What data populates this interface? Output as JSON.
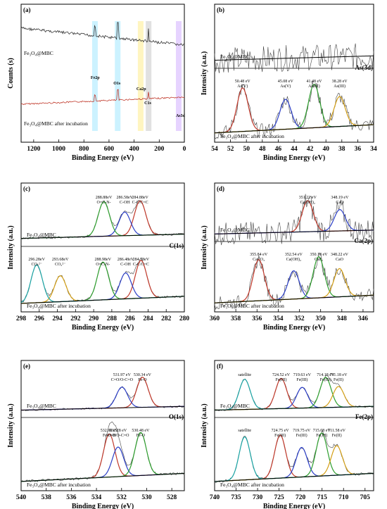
{
  "chart_data": [
    {
      "panel": "(a)",
      "type": "line",
      "xlabel": "Binding Energy (eV)",
      "ylabel": "Counts (s)",
      "xlim": [
        1300,
        0
      ],
      "xticks": [
        "1200",
        "1000",
        "800",
        "600",
        "400",
        "200",
        "0"
      ],
      "series_labels": [
        "Fe3O4@MBC",
        "Fe3O4@MBC after incubation"
      ],
      "annotations": [
        "Fe2p",
        "O1s",
        "Ca2p",
        "C1s",
        "As3d"
      ],
      "highlight_peaks": [
        712,
        531,
        348,
        285,
        45
      ]
    },
    {
      "panel": "(b)",
      "type": "line",
      "xlabel": "Binding Energy (eV)",
      "ylabel": "Intensity (a.u.)",
      "region": "As(3d)",
      "xlim": [
        54,
        34
      ],
      "xticks": [
        "54",
        "52",
        "50",
        "48",
        "46",
        "44",
        "42",
        "40",
        "38",
        "36",
        "34"
      ],
      "series_labels": [
        "Fe3O4@MBC",
        "Fe3O4@MBC after incubation"
      ],
      "peaks": [
        {
          "energy": 50.48,
          "label": "50.48 eV",
          "species": "As(V)"
        },
        {
          "energy": 45.08,
          "label": "45.08 eV",
          "species": "As(V)"
        },
        {
          "energy": 41.48,
          "label": "41.48 eV",
          "species": "As(III)"
        },
        {
          "energy": 38.28,
          "label": "38.28 eV",
          "species": "As(III)"
        }
      ]
    },
    {
      "panel": "(c)",
      "type": "line",
      "xlabel": "Binding Energy (eV)",
      "ylabel": "Intensity (a.u.)",
      "region": "C(1s)",
      "xlim": [
        298,
        280
      ],
      "xticks": [
        "298",
        "296",
        "294",
        "292",
        "290",
        "288",
        "286",
        "284",
        "282",
        "280"
      ],
      "series_labels": [
        "Fe3O4@MBC",
        "Fe3O4@MBC after incubation"
      ],
      "peaks_top": [
        {
          "energy": 284.88,
          "label": "284.88eV",
          "species": "C-C/C=C"
        },
        {
          "energy": 286.58,
          "label": "286.58eV",
          "species": "C-OH"
        },
        {
          "energy": 288.88,
          "label": "288.88eV",
          "species": "O=C-N-"
        }
      ],
      "peaks_bottom": [
        {
          "energy": 284.78,
          "label": "284.78eV",
          "species": "C-C/C=C"
        },
        {
          "energy": 286.48,
          "label": "286.48eV",
          "species": "C-OH"
        },
        {
          "energy": 288.98,
          "label": "288.98eV",
          "species": "O=C-N-"
        },
        {
          "energy": 293.68,
          "label": "293.68eV",
          "species": "CO32-"
        },
        {
          "energy": 296.28,
          "label": "296.28eV",
          "species": "CO32-"
        }
      ]
    },
    {
      "panel": "(d)",
      "type": "line",
      "xlabel": "Binding Energy (eV)",
      "ylabel": "Intensity (a.u.)",
      "region": "Ca(2p)",
      "xlim": [
        360,
        345
      ],
      "xticks": [
        "360",
        "358",
        "356",
        "354",
        "352",
        "350",
        "348",
        "346"
      ],
      "series_labels": [
        "Fe3O4@MBC",
        "Fe3O4@MBC after incubation"
      ],
      "peaks_top": [
        {
          "energy": 351.22,
          "label": "351.22 eV",
          "species": "Ca(OH)2"
        },
        {
          "energy": 348.19,
          "label": "348.19 eV",
          "species": "CaO"
        }
      ],
      "peaks_bottom": [
        {
          "energy": 355.84,
          "label": "355.84 eV",
          "species": "CaCO3"
        },
        {
          "energy": 352.54,
          "label": "352.54 eV",
          "species": "Ca(OH)2"
        },
        {
          "energy": 350.18,
          "label": "350.18 eV",
          "species": "CaF2"
        },
        {
          "energy": 348.22,
          "label": "348.22 eV",
          "species": "CaO"
        }
      ]
    },
    {
      "panel": "(e)",
      "type": "line",
      "xlabel": "Binding Energy (eV)",
      "ylabel": "Intensity (a.u.)",
      "region": "O(1s)",
      "xlim": [
        540,
        527
      ],
      "xticks": [
        "540",
        "538",
        "536",
        "534",
        "532",
        "530",
        "528"
      ],
      "series_labels": [
        "Fe3O4@MBC",
        "Fe3O4@MBC after incubation"
      ],
      "peaks_top": [
        {
          "energy": 530.34,
          "label": "530.34 eV",
          "species": "Fe-O"
        },
        {
          "energy": 531.97,
          "label": "531.97 eV",
          "species": "C=O/O-C=O"
        }
      ],
      "peaks_bottom": [
        {
          "energy": 532.98,
          "label": "532.98 eV",
          "species": "Fe-O-H"
        },
        {
          "energy": 532.28,
          "label": "532.28 eV",
          "species": "C=O/O-C=O"
        },
        {
          "energy": 530.48,
          "label": "530.48 eV",
          "species": "Fe-O"
        }
      ]
    },
    {
      "panel": "(f)",
      "type": "line",
      "xlabel": "Binding Energy (eV)",
      "ylabel": "Intensity (a.u.)",
      "region": "Fe(2p)",
      "xlim": [
        740,
        703
      ],
      "xticks": [
        "740",
        "735",
        "730",
        "725",
        "720",
        "715",
        "710",
        "705"
      ],
      "series_labels": [
        "Fe3O4@MBC",
        "Fe3O4@MBC after incubation"
      ],
      "peaks_top": [
        {
          "energy": 724.52,
          "label": "724.52 eV",
          "species": "Fe(III)"
        },
        {
          "energy": 719.63,
          "label": "719.63 eV",
          "species": "Fe(III)"
        },
        {
          "energy": 714.18,
          "label": "714.18 eV",
          "species": "Fe(III)"
        },
        {
          "energy": 711.18,
          "label": "711.18 eV",
          "species": "Fe(II)"
        },
        {
          "energy": 733,
          "label": "satellite",
          "species": ""
        }
      ],
      "peaks_bottom": [
        {
          "energy": 724.75,
          "label": "724.75 eV",
          "species": "Fe(III)"
        },
        {
          "energy": 719.75,
          "label": "719.75 eV",
          "species": "Fe(III)"
        },
        {
          "energy": 715.08,
          "label": "715.08 eV",
          "species": "Fe(III)"
        },
        {
          "energy": 711.58,
          "label": "711.58 eV",
          "species": "Fe(II)"
        },
        {
          "energy": 733,
          "label": "satellite",
          "species": ""
        }
      ]
    }
  ]
}
